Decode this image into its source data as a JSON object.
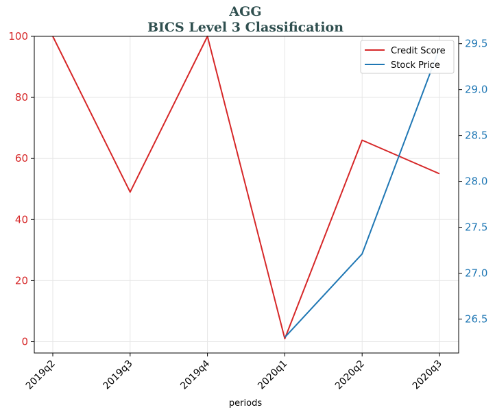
{
  "chart_data": {
    "type": "line",
    "title": "AGG",
    "subtitle": "BICS Level 3 Classification",
    "xlabel": "periods",
    "categories": [
      "2019q2",
      "2019q3",
      "2019q4",
      "2020q1",
      "2020q2",
      "2020q3"
    ],
    "series": [
      {
        "name": "Credit Score",
        "axis": "left",
        "color": "#d62728",
        "values": [
          100,
          49,
          100,
          1,
          66,
          55
        ]
      },
      {
        "name": "Stock Price",
        "axis": "right",
        "color": "#1f77b4",
        "values": [
          null,
          null,
          null,
          26.3,
          27.21,
          29.45
        ]
      }
    ],
    "y_left": {
      "lim": [
        -3.7,
        100
      ],
      "ticks": [
        0,
        20,
        40,
        60,
        80,
        100
      ],
      "tick_color": "#d62728"
    },
    "y_right": {
      "lim": [
        26.13,
        29.58
      ],
      "ticks": [
        "26.5",
        "27.0",
        "27.5",
        "28.0",
        "28.5",
        "29.0",
        "29.5"
      ],
      "tick_color": "#1f77b4"
    },
    "grid": true,
    "legend_position": "top-right"
  }
}
